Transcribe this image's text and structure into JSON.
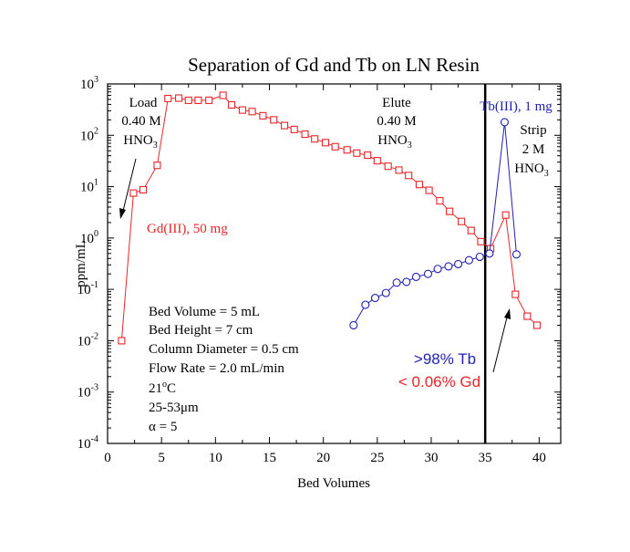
{
  "chart_data": {
    "type": "scatter",
    "title": "Separation of Gd and Tb on LN Resin",
    "xlabel": "Bed Volumes",
    "ylabel": "ppm/mL",
    "xlim": [
      0,
      42
    ],
    "ylim": [
      0.0001,
      1000
    ],
    "yscale": "log",
    "x_ticks": [
      "0",
      "5",
      "10",
      "15",
      "20",
      "25",
      "30",
      "35",
      "40"
    ],
    "y_ticks": [
      {
        "base": "10",
        "exp": "-4"
      },
      {
        "base": "10",
        "exp": "-3"
      },
      {
        "base": "10",
        "exp": "-2"
      },
      {
        "base": "10",
        "exp": "-1"
      },
      {
        "base": "10",
        "exp": "0"
      },
      {
        "base": "10",
        "exp": "1"
      },
      {
        "base": "10",
        "exp": "2"
      },
      {
        "base": "10",
        "exp": "3"
      }
    ],
    "grid": false,
    "series": [
      {
        "name": "Gd(III), 50 mg",
        "color": "#e8262a",
        "marker": "square",
        "x": [
          1.3,
          2.4,
          3.3,
          4.6,
          5.6,
          6.6,
          7.5,
          8.4,
          9.4,
          10.7,
          11.5,
          12.5,
          13.4,
          14.4,
          15.4,
          16.4,
          17.3,
          18.3,
          19.2,
          20.2,
          21.1,
          22.2,
          23.1,
          24.1,
          25.0,
          26.0,
          27.0,
          27.9,
          28.9,
          29.8,
          30.8,
          31.7,
          32.8,
          33.7,
          34.6,
          35.5,
          36.9,
          37.8,
          38.9,
          39.8
        ],
        "y": [
          0.01,
          7.5,
          8.7,
          26,
          520,
          530,
          480,
          480,
          480,
          600,
          390,
          310,
          290,
          240,
          200,
          155,
          130,
          105,
          85,
          72,
          60,
          52,
          45,
          41,
          32,
          25,
          21,
          16.5,
          11,
          8.5,
          5.3,
          3.3,
          2.1,
          1.4,
          0.85,
          0.62,
          2.8,
          0.08,
          0.03,
          0.02
        ]
      },
      {
        "name": "Tb(III), 1 mg",
        "color": "#1f1fb3",
        "marker": "circle",
        "x": [
          22.8,
          23.9,
          24.8,
          25.8,
          26.8,
          27.7,
          28.6,
          29.7,
          30.6,
          31.6,
          32.5,
          33.5,
          34.5,
          35.4,
          36.8,
          37.9
        ],
        "y": [
          0.02,
          0.05,
          0.068,
          0.085,
          0.135,
          0.14,
          0.175,
          0.2,
          0.25,
          0.28,
          0.31,
          0.37,
          0.43,
          0.5,
          180,
          0.48
        ]
      }
    ],
    "vline_x": 35,
    "annotations": {
      "load": {
        "line1": "Load",
        "line2": "0.40 M",
        "line3_base": "HNO",
        "line3_sub": "3"
      },
      "elute": {
        "line1": "Elute",
        "line2": "0.40 M",
        "line3_base": "HNO",
        "line3_sub": "3"
      },
      "strip": {
        "line1": "Strip",
        "line2": "2 M",
        "line3_base": "HNO",
        "line3_sub": "3"
      },
      "gd_label": "Gd(III), 50 mg",
      "tb_label": "Tb(III), 1 mg",
      "result_tb": ">98% Tb",
      "result_gd": "< 0.06% Gd",
      "conditions": {
        "bed_volume": "Bed Volume = 5 mL",
        "bed_height": "Bed Height = 7 cm",
        "column_diameter": "Column Diameter = 0.5 cm",
        "flow_rate": "Flow Rate = 2.0 mL/min",
        "temp_base": "21",
        "temp_sup": "o",
        "temp_unit": "C",
        "particle_size": "25-53μm",
        "alpha": "α = 5"
      }
    }
  }
}
